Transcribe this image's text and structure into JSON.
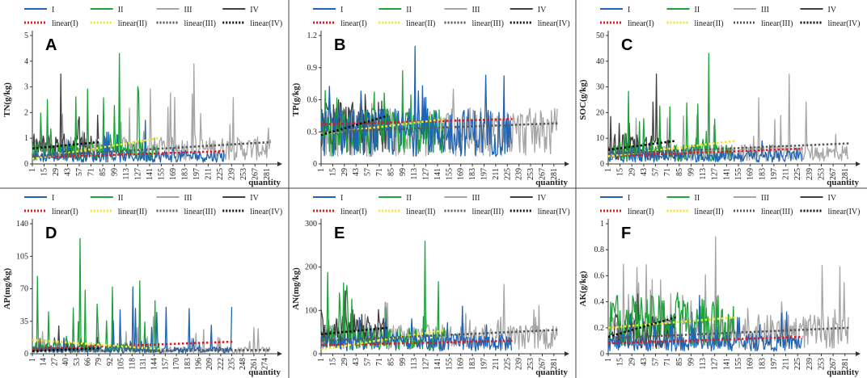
{
  "series_names": [
    "I",
    "II",
    "III",
    "IV"
  ],
  "linear_names": [
    "linear(I)",
    "linear(II)",
    "linear(III)",
    "linear(IV)"
  ],
  "colors": {
    "I": "#1f64b4",
    "II": "#1da33a",
    "III": "#a6a6a6",
    "IV": "#404040",
    "lin_I": "#e31a1c",
    "lin_II": "#f2e52e",
    "lin_III": "#5a5a5a",
    "lin_IV": "#111111"
  },
  "chart_data": [
    {
      "letter": "A",
      "type": "line",
      "ylabel": "TN(g/kg)",
      "xlabel": "quantity",
      "ylim": [
        0,
        5
      ],
      "yticks": [
        "0",
        "1",
        "2",
        "3",
        "4",
        "5"
      ],
      "xticks": [
        "1",
        "15",
        "29",
        "43",
        "57",
        "71",
        "85",
        "99",
        "113",
        "127",
        "141",
        "155",
        "169",
        "183",
        "197",
        "211",
        "225",
        "239",
        "253",
        "267",
        "281"
      ],
      "xmax": 285,
      "lengths": [
        230,
        150,
        285,
        80
      ],
      "peaks": [
        1.7,
        4.3,
        3.9,
        3.5
      ],
      "levels": [
        0.35,
        0.6,
        0.7,
        0.8
      ],
      "trend": [
        [
          0.25,
          0.5
        ],
        [
          0.2,
          1.0
        ],
        [
          0.3,
          0.85
        ],
        [
          0.6,
          0.85
        ]
      ]
    },
    {
      "letter": "B",
      "type": "line",
      "ylabel": "TP(g/kg)",
      "xlabel": "quantity",
      "ylim": [
        0,
        1.2
      ],
      "yticks": [
        "0",
        "0.3",
        "0.6",
        "0.9",
        "1.2"
      ],
      "xticks": [
        "1",
        "15",
        "29",
        "43",
        "57",
        "71",
        "85",
        "99",
        "113",
        "127",
        "141",
        "155",
        "169",
        "183",
        "197",
        "211",
        "225",
        "239",
        "253",
        "267",
        "281"
      ],
      "xmax": 285,
      "lengths": [
        230,
        150,
        285,
        80
      ],
      "peaks": [
        1.1,
        0.87,
        0.7,
        0.65
      ],
      "levels": [
        0.35,
        0.35,
        0.35,
        0.4
      ],
      "trend": [
        [
          0.37,
          0.42
        ],
        [
          0.28,
          0.42
        ],
        [
          0.3,
          0.38
        ],
        [
          0.27,
          0.45
        ]
      ]
    },
    {
      "letter": "C",
      "type": "line",
      "ylabel": "SOC(g/kg)",
      "xlabel": "quantity",
      "ylim": [
        0,
        50
      ],
      "yticks": [
        "0",
        "10",
        "20",
        "30",
        "40",
        "50"
      ],
      "xticks": [
        "1",
        "15",
        "29",
        "43",
        "57",
        "71",
        "85",
        "99",
        "113",
        "127",
        "141",
        "155",
        "169",
        "183",
        "197",
        "211",
        "225",
        "239",
        "253",
        "267",
        "281"
      ],
      "xmax": 285,
      "lengths": [
        230,
        150,
        285,
        80
      ],
      "peaks": [
        9,
        43,
        35,
        35
      ],
      "levels": [
        3.5,
        5,
        5,
        8
      ],
      "trend": [
        [
          3,
          6
        ],
        [
          3,
          9
        ],
        [
          4,
          8
        ],
        [
          5.5,
          9
        ]
      ]
    },
    {
      "letter": "D",
      "type": "line",
      "ylabel": "AP(mg/kg)",
      "xlabel": "quantity",
      "ylim": [
        0,
        140
      ],
      "yticks": [
        "0",
        "35",
        "70",
        "105",
        "140"
      ],
      "xticks": [
        "1",
        "14",
        "27",
        "40",
        "53",
        "66",
        "79",
        "92",
        "105",
        "118",
        "131",
        "144",
        "157",
        "170",
        "183",
        "196",
        "209",
        "222",
        "235",
        "248",
        "261",
        "274"
      ],
      "xmax": 280,
      "lengths": [
        235,
        150,
        280,
        80
      ],
      "peaks": [
        72,
        124,
        40,
        30
      ],
      "levels": [
        5,
        8,
        5,
        7
      ],
      "trend": [
        [
          5,
          13
        ],
        [
          15,
          5
        ],
        [
          3,
          4
        ],
        [
          3,
          6
        ]
      ]
    },
    {
      "letter": "E",
      "type": "line",
      "ylabel": "AN(mg/kg)",
      "xlabel": "quantity",
      "ylim": [
        0,
        300
      ],
      "yticks": [
        "0",
        "100",
        "200",
        "300"
      ],
      "xticks": [
        "1",
        "15",
        "29",
        "43",
        "57",
        "71",
        "85",
        "99",
        "113",
        "127",
        "141",
        "155",
        "169",
        "183",
        "197",
        "211",
        "225",
        "239",
        "253",
        "267",
        "281"
      ],
      "xmax": 285,
      "lengths": [
        230,
        150,
        285,
        80
      ],
      "peaks": [
        110,
        260,
        160,
        145
      ],
      "levels": [
        30,
        40,
        45,
        70
      ],
      "trend": [
        [
          20,
          30
        ],
        [
          10,
          55
        ],
        [
          30,
          55
        ],
        [
          45,
          60
        ]
      ]
    },
    {
      "letter": "F",
      "type": "line",
      "ylabel": "AK(g/kg)",
      "xlabel": "quantity",
      "ylim": [
        0,
        1
      ],
      "yticks": [
        "0",
        "0.2",
        "0.4",
        "0.6",
        "0.8",
        "1"
      ],
      "xticks": [
        "1",
        "15",
        "29",
        "43",
        "57",
        "71",
        "85",
        "99",
        "113",
        "127",
        "141",
        "155",
        "169",
        "183",
        "197",
        "211",
        "225",
        "239",
        "253",
        "267",
        "281"
      ],
      "xmax": 285,
      "lengths": [
        230,
        150,
        285,
        80
      ],
      "peaks": [
        0.45,
        0.47,
        0.9,
        0.46
      ],
      "levels": [
        0.1,
        0.3,
        0.2,
        0.2
      ],
      "trend": [
        [
          0.08,
          0.13
        ],
        [
          0.2,
          0.28
        ],
        [
          0.12,
          0.2
        ],
        [
          0.13,
          0.28
        ]
      ]
    }
  ]
}
